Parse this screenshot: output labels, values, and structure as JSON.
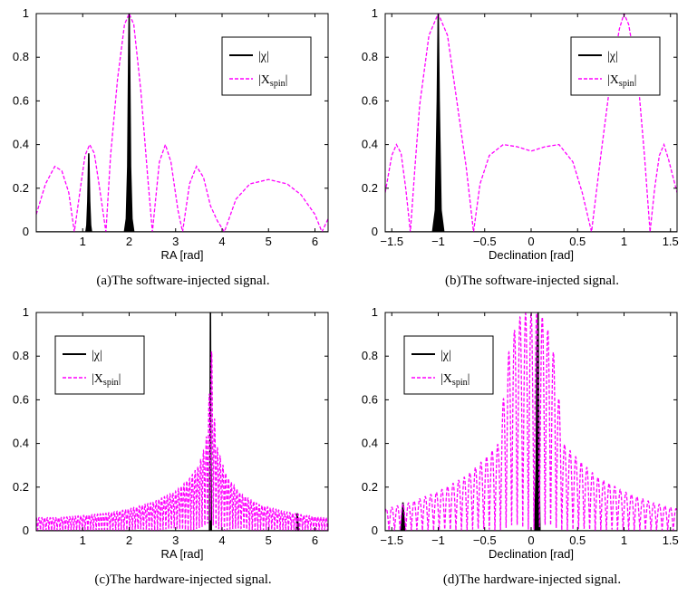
{
  "colors": {
    "chi": "#000000",
    "xspin": "#ff00ff"
  },
  "chart_data": [
    {
      "id": "a",
      "type": "line",
      "caption": "(a)The software-injected signal.",
      "xlabel": "RA [rad]",
      "ylabel": "",
      "xlim": [
        0,
        6.2832
      ],
      "ylim": [
        0,
        1
      ],
      "xticks": [
        1,
        2,
        3,
        4,
        5,
        6
      ],
      "xtick_labels": [
        "1",
        "2",
        "3",
        "4",
        "5",
        "6"
      ],
      "yticks": [
        0,
        0.2,
        0.4,
        0.6,
        0.8,
        1
      ],
      "ytick_labels": [
        "0",
        "0.2",
        "0.4",
        "0.6",
        "0.8",
        "1"
      ],
      "legend": {
        "placement": "top-right",
        "entries": [
          "|χ|",
          "|X",
          "spin",
          "|"
        ]
      },
      "series": [
        {
          "name": "|χ|",
          "style": "solid",
          "fill": true,
          "x": [
            0,
            1.07,
            1.09,
            1.11,
            1.13,
            1.15,
            1.17,
            1.19,
            1.21,
            1.9,
            1.94,
            1.97,
            1.99,
            2.0,
            2.01,
            2.03,
            2.06,
            2.1,
            6.2832
          ],
          "y": [
            0,
            0,
            0.03,
            0.14,
            0.36,
            0.14,
            0.03,
            0,
            0,
            0,
            0.06,
            0.3,
            0.8,
            1.0,
            0.8,
            0.3,
            0.06,
            0,
            0
          ]
        },
        {
          "name": "|Xspin|",
          "style": "dashed",
          "x": [
            0,
            0.2,
            0.4,
            0.55,
            0.7,
            0.82,
            0.95,
            1.05,
            1.15,
            1.25,
            1.35,
            1.5,
            1.6,
            1.75,
            1.9,
            2.0,
            2.1,
            2.25,
            2.4,
            2.5,
            2.65,
            2.78,
            2.9,
            3.05,
            3.15,
            3.3,
            3.45,
            3.6,
            3.75,
            3.9,
            4.05,
            4.3,
            4.6,
            5.0,
            5.4,
            5.7,
            6.0,
            6.15,
            6.2832
          ],
          "y": [
            0.08,
            0.22,
            0.3,
            0.28,
            0.18,
            0.0,
            0.2,
            0.35,
            0.4,
            0.36,
            0.22,
            0.0,
            0.35,
            0.7,
            0.95,
            1.0,
            0.95,
            0.65,
            0.25,
            0.0,
            0.32,
            0.4,
            0.32,
            0.1,
            0.0,
            0.22,
            0.3,
            0.25,
            0.12,
            0.05,
            0.0,
            0.15,
            0.22,
            0.24,
            0.22,
            0.17,
            0.08,
            0.0,
            0.06
          ]
        }
      ]
    },
    {
      "id": "b",
      "type": "line",
      "caption": "(b)The software-injected signal.",
      "xlabel": "Declination [rad]",
      "ylabel": "",
      "xlim": [
        -1.5708,
        1.5708
      ],
      "ylim": [
        0,
        1
      ],
      "xticks": [
        -1.5,
        -1,
        -0.5,
        0,
        0.5,
        1,
        1.5
      ],
      "xtick_labels": [
        "−1.5",
        "−1",
        "−0.5",
        "0",
        "0.5",
        "1",
        "1.5"
      ],
      "yticks": [
        0,
        0.2,
        0.4,
        0.6,
        0.8,
        1
      ],
      "ytick_labels": [
        "0",
        "0.2",
        "0.4",
        "0.6",
        "0.8",
        "1"
      ],
      "legend": {
        "placement": "top-right",
        "entries": [
          "|χ|",
          "|X",
          "spin",
          "|"
        ]
      },
      "series": [
        {
          "name": "|χ|",
          "style": "solid",
          "fill": true,
          "x": [
            -1.5708,
            -1.06,
            -1.03,
            -1.01,
            -1.0,
            -0.99,
            -0.97,
            -0.94,
            1.5708
          ],
          "y": [
            0,
            0,
            0.1,
            0.6,
            1.0,
            0.6,
            0.1,
            0,
            0
          ]
        },
        {
          "name": "|Xspin|",
          "style": "dashed",
          "x": [
            -1.5708,
            -1.5,
            -1.45,
            -1.4,
            -1.35,
            -1.3,
            -1.25,
            -1.2,
            -1.1,
            -1.0,
            -0.9,
            -0.8,
            -0.7,
            -0.62,
            -0.55,
            -0.45,
            -0.3,
            -0.15,
            0,
            0.15,
            0.3,
            0.45,
            0.55,
            0.65,
            0.75,
            0.85,
            0.95,
            1.0,
            1.05,
            1.15,
            1.22,
            1.28,
            1.33,
            1.38,
            1.43,
            1.48,
            1.5708
          ],
          "y": [
            0.18,
            0.35,
            0.4,
            0.36,
            0.2,
            0.0,
            0.3,
            0.58,
            0.9,
            1.0,
            0.9,
            0.6,
            0.3,
            0.0,
            0.22,
            0.35,
            0.4,
            0.39,
            0.37,
            0.39,
            0.4,
            0.32,
            0.18,
            0.0,
            0.35,
            0.68,
            0.93,
            1.0,
            0.95,
            0.7,
            0.35,
            0.0,
            0.2,
            0.35,
            0.4,
            0.33,
            0.18
          ]
        }
      ]
    },
    {
      "id": "c",
      "type": "line",
      "caption": "(c)The hardware-injected signal.",
      "xlabel": "RA [rad]",
      "ylabel": "",
      "xlim": [
        0,
        6.2832
      ],
      "ylim": [
        0,
        1
      ],
      "xticks": [
        1,
        2,
        3,
        4,
        5,
        6
      ],
      "xtick_labels": [
        "1",
        "2",
        "3",
        "4",
        "5",
        "6"
      ],
      "yticks": [
        0,
        0.2,
        0.4,
        0.6,
        0.8,
        1
      ],
      "ytick_labels": [
        "0",
        "0.2",
        "0.4",
        "0.6",
        "0.8",
        "1"
      ],
      "legend": {
        "placement": "top-left",
        "entries": [
          "|χ|",
          "|X",
          "spin",
          "|"
        ]
      },
      "series": [
        {
          "name": "|χ|",
          "style": "solid",
          "fill": true,
          "x": [
            0,
            3.73,
            3.74,
            3.75,
            3.76,
            3.77,
            5.6,
            5.61,
            5.62,
            5.63,
            5.64,
            6.2832
          ],
          "y": [
            0,
            0,
            0.35,
            1.0,
            0.35,
            0,
            0,
            0.04,
            0.08,
            0.04,
            0,
            0
          ]
        },
        {
          "name": "|Xspin|",
          "style": "dashed",
          "oscillating": true,
          "envelope_x": [
            0,
            0.5,
            1.0,
            1.5,
            2.0,
            2.5,
            3.0,
            3.3,
            3.5,
            3.65,
            3.72,
            3.76,
            3.8,
            3.9,
            4.1,
            4.4,
            4.8,
            5.3,
            5.8,
            6.2832
          ],
          "envelope_y": [
            0.06,
            0.06,
            0.07,
            0.08,
            0.1,
            0.13,
            0.18,
            0.24,
            0.3,
            0.4,
            0.6,
            1.0,
            0.6,
            0.38,
            0.25,
            0.17,
            0.12,
            0.09,
            0.07,
            0.06
          ],
          "oscillation_period": 0.06
        }
      ]
    },
    {
      "id": "d",
      "type": "line",
      "caption": "(d)The hardware-injected signal.",
      "xlabel": "Declination [rad]",
      "ylabel": "",
      "xlim": [
        -1.5708,
        1.5708
      ],
      "ylim": [
        0,
        1
      ],
      "xticks": [
        -1.5,
        -1,
        -0.5,
        0,
        0.5,
        1,
        1.5
      ],
      "xtick_labels": [
        "−1.5",
        "−1",
        "−0.5",
        "0",
        "0.5",
        "1",
        "1.5"
      ],
      "yticks": [
        0,
        0.2,
        0.4,
        0.6,
        0.8,
        1
      ],
      "ytick_labels": [
        "0",
        "0.2",
        "0.4",
        "0.6",
        "0.8",
        "1"
      ],
      "legend": {
        "placement": "top-left",
        "entries": [
          "|χ|",
          "|X",
          "spin",
          "|"
        ]
      },
      "series": [
        {
          "name": "|χ|",
          "style": "solid",
          "fill": true,
          "x": [
            -1.5708,
            -1.4,
            -1.39,
            -1.38,
            -1.37,
            -1.36,
            0.04,
            0.055,
            0.065,
            0.075,
            0.085,
            0.095,
            1.5708
          ],
          "y": [
            0,
            0,
            0.06,
            0.13,
            0.06,
            0,
            0,
            0.3,
            0.85,
            1.0,
            0.3,
            0,
            0
          ]
        },
        {
          "name": "|Xspin|",
          "style": "dashed",
          "oscillating": true,
          "envelope_x": [
            -1.5708,
            -1.3,
            -1.0,
            -0.7,
            -0.5,
            -0.35,
            -0.25,
            -0.15,
            -0.05,
            0.05,
            0.15,
            0.25,
            0.35,
            0.5,
            0.7,
            1.0,
            1.3,
            1.5708
          ],
          "envelope_y": [
            0.1,
            0.13,
            0.18,
            0.25,
            0.33,
            0.4,
            0.8,
            0.97,
            1.0,
            1.0,
            0.97,
            0.8,
            0.4,
            0.33,
            0.25,
            0.18,
            0.13,
            0.1
          ],
          "oscillation_period": 0.06
        }
      ]
    }
  ]
}
